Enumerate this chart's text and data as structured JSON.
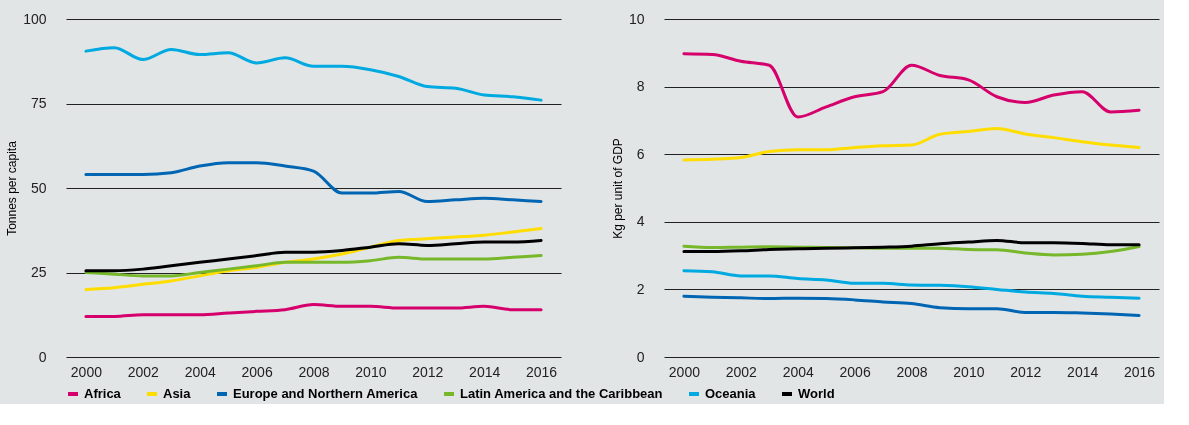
{
  "chart_data": [
    {
      "type": "line",
      "ylabel": "Tonnes per capita",
      "x": [
        2000,
        2001,
        2002,
        2003,
        2004,
        2005,
        2006,
        2007,
        2008,
        2009,
        2010,
        2011,
        2012,
        2013,
        2014,
        2015,
        2016
      ],
      "xlim": [
        1999.3,
        2016.7
      ],
      "xticks": [
        2000,
        2002,
        2004,
        2006,
        2008,
        2010,
        2012,
        2014,
        2016
      ],
      "ylim": [
        0,
        100
      ],
      "yticks": [
        0,
        25,
        50,
        75,
        100
      ],
      "grid": "y",
      "legend": "bottom",
      "line_style": "solid",
      "series": [
        {
          "name": "Africa",
          "color": "#d6006c",
          "values": [
            12,
            12,
            12.5,
            12.5,
            12.5,
            13,
            13.5,
            14,
            15.5,
            15,
            15,
            14.5,
            14.5,
            14.5,
            15,
            14,
            14
          ]
        },
        {
          "name": "Asia",
          "color": "#ffdd00",
          "values": [
            20,
            20.5,
            21.5,
            22.5,
            24,
            25.5,
            26.5,
            28,
            29,
            30.5,
            32.5,
            34.5,
            35,
            35.5,
            36,
            37,
            38
          ]
        },
        {
          "name": "Europe and Northern America",
          "color": "#0066b3",
          "values": [
            54,
            54,
            54,
            54.5,
            56.5,
            57.5,
            57.5,
            56.5,
            55,
            48.5,
            48.5,
            49,
            46,
            46.5,
            47,
            46.5,
            46
          ]
        },
        {
          "name": "Latin America and the Caribbean",
          "color": "#76b82a",
          "values": [
            25,
            24.5,
            24,
            24,
            25,
            26,
            27,
            28,
            28,
            28,
            28.5,
            29.5,
            29,
            29,
            29,
            29.5,
            30
          ]
        },
        {
          "name": "Oceania",
          "color": "#00a9e0",
          "values": [
            90.5,
            91.5,
            88,
            91,
            89.5,
            90,
            87,
            88.5,
            86,
            86,
            85,
            83,
            80,
            79.5,
            77.5,
            77,
            76
          ]
        },
        {
          "name": "World",
          "color": "#000000",
          "values": [
            25.5,
            25.5,
            26,
            27,
            28,
            29,
            30,
            31,
            31,
            31.5,
            32.5,
            33.5,
            33,
            33.5,
            34,
            34,
            34.5
          ]
        }
      ]
    },
    {
      "type": "line",
      "ylabel": "Kg per unit of GDP",
      "x": [
        2000,
        2001,
        2002,
        2003,
        2004,
        2005,
        2006,
        2007,
        2008,
        2009,
        2010,
        2011,
        2012,
        2013,
        2014,
        2015,
        2016
      ],
      "xlim": [
        1999.3,
        2016.7
      ],
      "xticks": [
        2000,
        2002,
        2004,
        2006,
        2008,
        2010,
        2012,
        2014,
        2016
      ],
      "ylim": [
        0,
        10
      ],
      "yticks": [
        0,
        2,
        4,
        6,
        8,
        10
      ],
      "grid": "y",
      "legend": "bottom",
      "line_style": "solid",
      "series": [
        {
          "name": "Africa",
          "color": "#d6006c",
          "values": [
            8.97,
            8.95,
            8.75,
            8.63,
            7.1,
            7.4,
            7.7,
            7.85,
            8.63,
            8.33,
            8.2,
            7.7,
            7.53,
            7.75,
            7.85,
            7.25,
            7.3
          ]
        },
        {
          "name": "Asia",
          "color": "#ffdd00",
          "values": [
            5.83,
            5.85,
            5.9,
            6.08,
            6.13,
            6.13,
            6.2,
            6.25,
            6.27,
            6.59,
            6.67,
            6.76,
            6.6,
            6.49,
            6.37,
            6.27,
            6.2
          ]
        },
        {
          "name": "Europe and Northern America",
          "color": "#0066b3",
          "values": [
            1.8,
            1.77,
            1.75,
            1.73,
            1.74,
            1.73,
            1.69,
            1.63,
            1.58,
            1.46,
            1.43,
            1.43,
            1.32,
            1.32,
            1.3,
            1.27,
            1.23
          ]
        },
        {
          "name": "Latin America and the Caribbean",
          "color": "#76b82a",
          "values": [
            3.28,
            3.24,
            3.25,
            3.26,
            3.25,
            3.24,
            3.23,
            3.22,
            3.22,
            3.22,
            3.18,
            3.17,
            3.08,
            3.02,
            3.04,
            3.12,
            3.27
          ]
        },
        {
          "name": "Oceania",
          "color": "#00a9e0",
          "values": [
            2.55,
            2.52,
            2.4,
            2.4,
            2.32,
            2.28,
            2.18,
            2.18,
            2.13,
            2.12,
            2.08,
            2.0,
            1.92,
            1.88,
            1.8,
            1.77,
            1.74
          ]
        },
        {
          "name": "World",
          "color": "#000000",
          "values": [
            3.12,
            3.12,
            3.14,
            3.18,
            3.2,
            3.22,
            3.23,
            3.25,
            3.28,
            3.35,
            3.4,
            3.45,
            3.38,
            3.38,
            3.36,
            3.32,
            3.32
          ]
        }
      ]
    }
  ]
}
